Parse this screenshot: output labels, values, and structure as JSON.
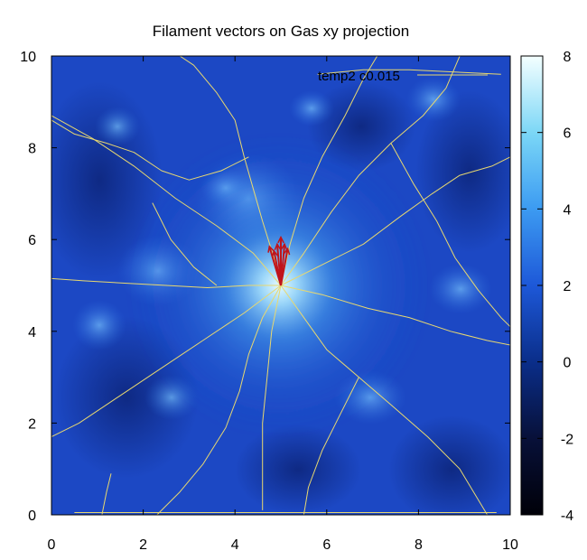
{
  "chart_data": {
    "type": "heatmap",
    "title": "Filament vectors on Gas xy projection",
    "annotation": "temp2 c0.015",
    "xlim": [
      0,
      10
    ],
    "ylim": [
      0,
      10
    ],
    "x_ticks": [
      "0",
      "2",
      "4",
      "6",
      "8",
      "10"
    ],
    "y_ticks": [
      "0",
      "2",
      "4",
      "6",
      "8",
      "10"
    ],
    "colorbar": {
      "range": [
        -4,
        8
      ],
      "ticks": [
        "-4",
        "-2",
        "0",
        "2",
        "4",
        "6",
        "8"
      ]
    },
    "center": [
      5.0,
      5.0
    ],
    "filament_color": "#e8d870",
    "vector_color": "#c0141a",
    "filaments": [
      [
        [
          5.0,
          5.0
        ],
        [
          4.85,
          5.6
        ],
        [
          4.6,
          6.4
        ],
        [
          4.4,
          7.1
        ],
        [
          4.2,
          7.8
        ],
        [
          4.0,
          8.6
        ],
        [
          3.6,
          9.2
        ],
        [
          3.1,
          9.8
        ],
        [
          2.8,
          10.0
        ]
      ],
      [
        [
          5.0,
          5.0
        ],
        [
          5.5,
          5.7
        ],
        [
          6.1,
          6.6
        ],
        [
          6.7,
          7.4
        ],
        [
          7.4,
          8.1
        ],
        [
          8.1,
          8.7
        ],
        [
          8.6,
          9.3
        ],
        [
          8.9,
          10.0
        ]
      ],
      [
        [
          5.0,
          5.0
        ],
        [
          5.8,
          5.4
        ],
        [
          6.8,
          5.9
        ],
        [
          7.6,
          6.5
        ],
        [
          8.3,
          7.0
        ],
        [
          8.9,
          7.4
        ],
        [
          9.6,
          7.6
        ],
        [
          10.0,
          7.8
        ]
      ],
      [
        [
          5.0,
          5.0
        ],
        [
          4.3,
          5.0
        ],
        [
          3.4,
          4.95
        ],
        [
          2.5,
          5.0
        ],
        [
          1.6,
          5.05
        ],
        [
          0.7,
          5.1
        ],
        [
          0.0,
          5.15
        ]
      ],
      [
        [
          5.0,
          5.0
        ],
        [
          4.6,
          4.3
        ],
        [
          4.3,
          3.5
        ],
        [
          4.1,
          2.7
        ],
        [
          3.8,
          1.9
        ],
        [
          3.3,
          1.1
        ],
        [
          2.8,
          0.5
        ],
        [
          2.3,
          0.0
        ]
      ],
      [
        [
          5.0,
          5.0
        ],
        [
          5.5,
          4.3
        ],
        [
          6.0,
          3.6
        ],
        [
          6.7,
          3.0
        ],
        [
          7.4,
          2.4
        ],
        [
          8.2,
          1.7
        ],
        [
          8.9,
          1.0
        ],
        [
          9.5,
          0.0
        ]
      ],
      [
        [
          5.0,
          5.0
        ],
        [
          4.4,
          5.7
        ],
        [
          3.6,
          6.3
        ],
        [
          2.7,
          6.9
        ],
        [
          1.8,
          7.6
        ],
        [
          0.9,
          8.2
        ],
        [
          0.0,
          8.7
        ]
      ],
      [
        [
          5.0,
          5.0
        ],
        [
          5.2,
          5.9
        ],
        [
          5.5,
          6.9
        ],
        [
          5.9,
          7.8
        ],
        [
          6.4,
          8.7
        ],
        [
          6.8,
          9.5
        ],
        [
          7.1,
          10.0
        ]
      ],
      [
        [
          5.0,
          5.0
        ],
        [
          5.9,
          4.8
        ],
        [
          6.9,
          4.5
        ],
        [
          7.8,
          4.3
        ],
        [
          8.7,
          4.0
        ],
        [
          9.5,
          3.8
        ],
        [
          10.0,
          3.7
        ]
      ],
      [
        [
          5.0,
          5.0
        ],
        [
          4.2,
          4.4
        ],
        [
          3.3,
          3.8
        ],
        [
          2.4,
          3.2
        ],
        [
          1.5,
          2.6
        ],
        [
          0.6,
          2.0
        ],
        [
          0.0,
          1.7
        ]
      ],
      [
        [
          4.3,
          7.8
        ],
        [
          3.7,
          7.5
        ],
        [
          3.0,
          7.3
        ],
        [
          2.4,
          7.5
        ],
        [
          1.8,
          7.9
        ],
        [
          1.2,
          8.1
        ],
        [
          0.5,
          8.3
        ],
        [
          0.0,
          8.6
        ]
      ],
      [
        [
          7.4,
          8.1
        ],
        [
          7.9,
          7.2
        ],
        [
          8.4,
          6.4
        ],
        [
          8.8,
          5.6
        ],
        [
          9.3,
          4.9
        ],
        [
          9.8,
          4.3
        ],
        [
          10.0,
          4.1
        ]
      ],
      [
        [
          6.7,
          3.0
        ],
        [
          6.3,
          2.2
        ],
        [
          5.9,
          1.4
        ],
        [
          5.6,
          0.6
        ],
        [
          5.5,
          0.0
        ]
      ],
      [
        [
          0.5,
          0.05
        ],
        [
          2.0,
          0.05
        ],
        [
          3.5,
          0.05
        ],
        [
          5.0,
          0.05
        ],
        [
          6.5,
          0.05
        ],
        [
          8.0,
          0.05
        ],
        [
          9.7,
          0.05
        ]
      ],
      [
        [
          5.8,
          9.6
        ],
        [
          6.8,
          9.7
        ],
        [
          7.8,
          9.7
        ],
        [
          8.8,
          9.65
        ],
        [
          9.8,
          9.6
        ]
      ],
      [
        [
          5.0,
          5.0
        ],
        [
          4.8,
          4.0
        ],
        [
          4.7,
          3.0
        ],
        [
          4.6,
          2.0
        ],
        [
          4.6,
          1.0
        ],
        [
          4.6,
          0.1
        ]
      ],
      [
        [
          2.2,
          6.8
        ],
        [
          2.6,
          6.0
        ],
        [
          3.1,
          5.4
        ],
        [
          3.6,
          5.0
        ]
      ],
      [
        [
          1.1,
          0.0
        ],
        [
          1.2,
          0.5
        ],
        [
          1.3,
          0.9
        ]
      ]
    ],
    "vectors": [
      [
        [
          5.0,
          5.0
        ],
        [
          4.92,
          5.9
        ]
      ],
      [
        [
          5.0,
          5.0
        ],
        [
          5.08,
          5.9
        ]
      ],
      [
        [
          5.0,
          5.0
        ],
        [
          4.85,
          5.75
        ]
      ],
      [
        [
          5.0,
          5.0
        ],
        [
          5.15,
          5.8
        ]
      ],
      [
        [
          5.0,
          5.0
        ],
        [
          5.0,
          6.05
        ]
      ],
      [
        [
          5.0,
          5.0
        ],
        [
          4.75,
          5.85
        ]
      ]
    ]
  }
}
